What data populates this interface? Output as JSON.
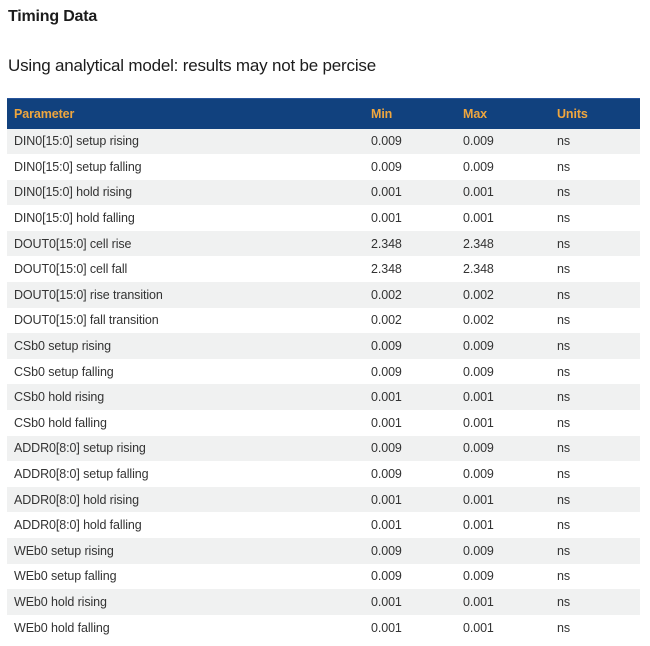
{
  "page": {
    "title": "Timing Data",
    "subtitle": "Using analytical model: results may not be percise"
  },
  "table": {
    "columns": [
      "Parameter",
      "Min",
      "Max",
      "Units"
    ],
    "rows": [
      {
        "parameter": "DIN0[15:0] setup rising",
        "min": "0.009",
        "max": "0.009",
        "units": "ns"
      },
      {
        "parameter": "DIN0[15:0] setup falling",
        "min": "0.009",
        "max": "0.009",
        "units": "ns"
      },
      {
        "parameter": "DIN0[15:0] hold rising",
        "min": "0.001",
        "max": "0.001",
        "units": "ns"
      },
      {
        "parameter": "DIN0[15:0] hold falling",
        "min": "0.001",
        "max": "0.001",
        "units": "ns"
      },
      {
        "parameter": "DOUT0[15:0] cell rise",
        "min": "2.348",
        "max": "2.348",
        "units": "ns"
      },
      {
        "parameter": "DOUT0[15:0] cell fall",
        "min": "2.348",
        "max": "2.348",
        "units": "ns"
      },
      {
        "parameter": "DOUT0[15:0] rise transition",
        "min": "0.002",
        "max": "0.002",
        "units": "ns"
      },
      {
        "parameter": "DOUT0[15:0] fall transition",
        "min": "0.002",
        "max": "0.002",
        "units": "ns"
      },
      {
        "parameter": "CSb0 setup rising",
        "min": "0.009",
        "max": "0.009",
        "units": "ns"
      },
      {
        "parameter": "CSb0 setup falling",
        "min": "0.009",
        "max": "0.009",
        "units": "ns"
      },
      {
        "parameter": "CSb0 hold rising",
        "min": "0.001",
        "max": "0.001",
        "units": "ns"
      },
      {
        "parameter": "CSb0 hold falling",
        "min": "0.001",
        "max": "0.001",
        "units": "ns"
      },
      {
        "parameter": "ADDR0[8:0] setup rising",
        "min": "0.009",
        "max": "0.009",
        "units": "ns"
      },
      {
        "parameter": "ADDR0[8:0] setup falling",
        "min": "0.009",
        "max": "0.009",
        "units": "ns"
      },
      {
        "parameter": "ADDR0[8:0] hold rising",
        "min": "0.001",
        "max": "0.001",
        "units": "ns"
      },
      {
        "parameter": "ADDR0[8:0] hold falling",
        "min": "0.001",
        "max": "0.001",
        "units": "ns"
      },
      {
        "parameter": "WEb0 setup rising",
        "min": "0.009",
        "max": "0.009",
        "units": "ns"
      },
      {
        "parameter": "WEb0 setup falling",
        "min": "0.009",
        "max": "0.009",
        "units": "ns"
      },
      {
        "parameter": "WEb0 hold rising",
        "min": "0.001",
        "max": "0.001",
        "units": "ns"
      },
      {
        "parameter": "WEb0 hold falling",
        "min": "0.001",
        "max": "0.001",
        "units": "ns"
      }
    ]
  },
  "colors": {
    "header_bg": "#11417e",
    "header_top_edge": "#27549b",
    "header_text": "#efa63e",
    "row_alt_bg": "#f0f1f1"
  }
}
